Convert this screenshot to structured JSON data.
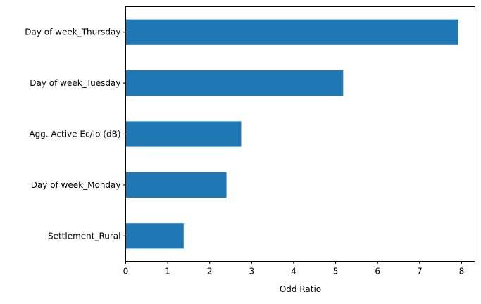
{
  "chart_data": {
    "type": "bar",
    "orientation": "horizontal",
    "categories": [
      "Settlement_Rural",
      "Day of week_Monday",
      "Agg. Active Ec/Io (dB)",
      "Day of week_Tuesday",
      "Day of week_Thursday"
    ],
    "values": [
      1.38,
      2.4,
      2.75,
      5.18,
      7.92
    ],
    "title": "",
    "xlabel": "Odd Ratio",
    "ylabel": "",
    "xlim": [
      0,
      8.32
    ],
    "xticks": [
      "0",
      "1",
      "2",
      "3",
      "4",
      "5",
      "6",
      "7",
      "8"
    ],
    "bar_color": "#1f77b4",
    "grid": false,
    "legend": "none"
  }
}
